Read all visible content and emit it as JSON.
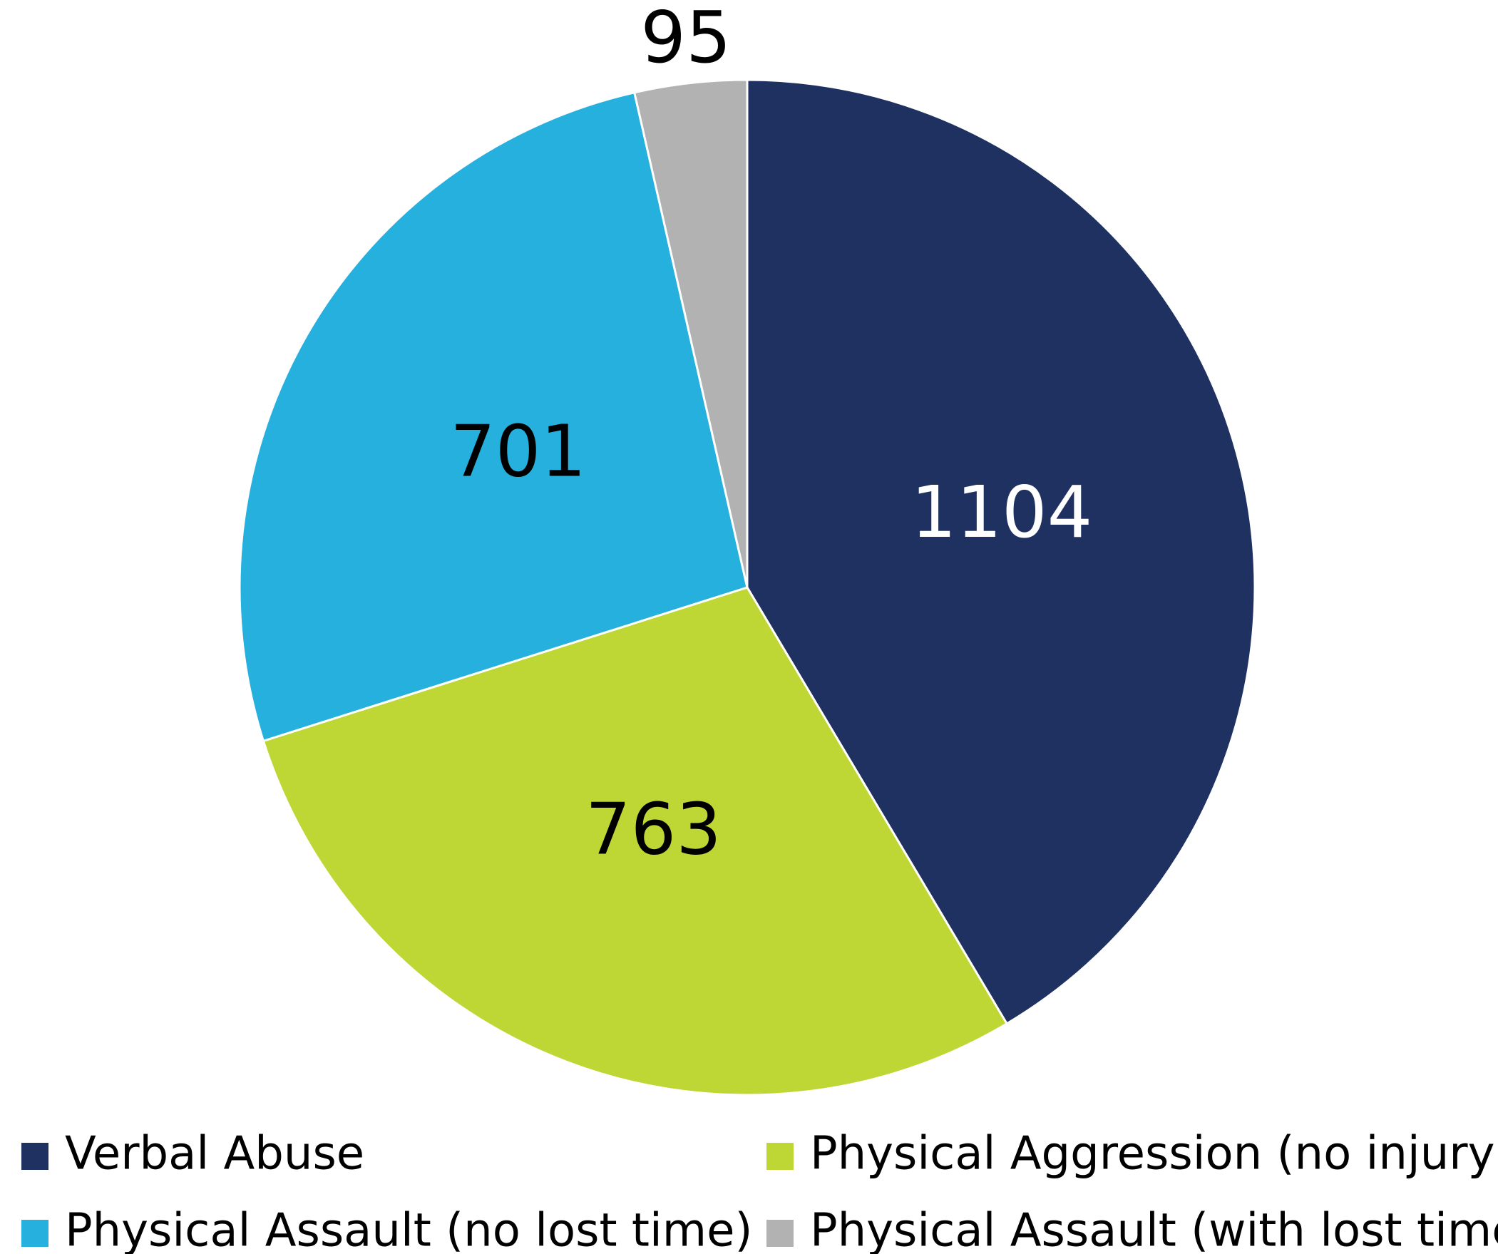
{
  "chart_data": {
    "type": "pie",
    "categories": [
      "Verbal Abuse",
      "Physical Aggression (no injury)",
      "Physical Assault (no lost time)",
      "Physical Assault (with lost time)"
    ],
    "values": [
      1104,
      763,
      701,
      95
    ],
    "colors": [
      "#1f3160",
      "#bfd734",
      "#26b0de",
      "#b2b2b2"
    ],
    "legend": "bottom"
  }
}
